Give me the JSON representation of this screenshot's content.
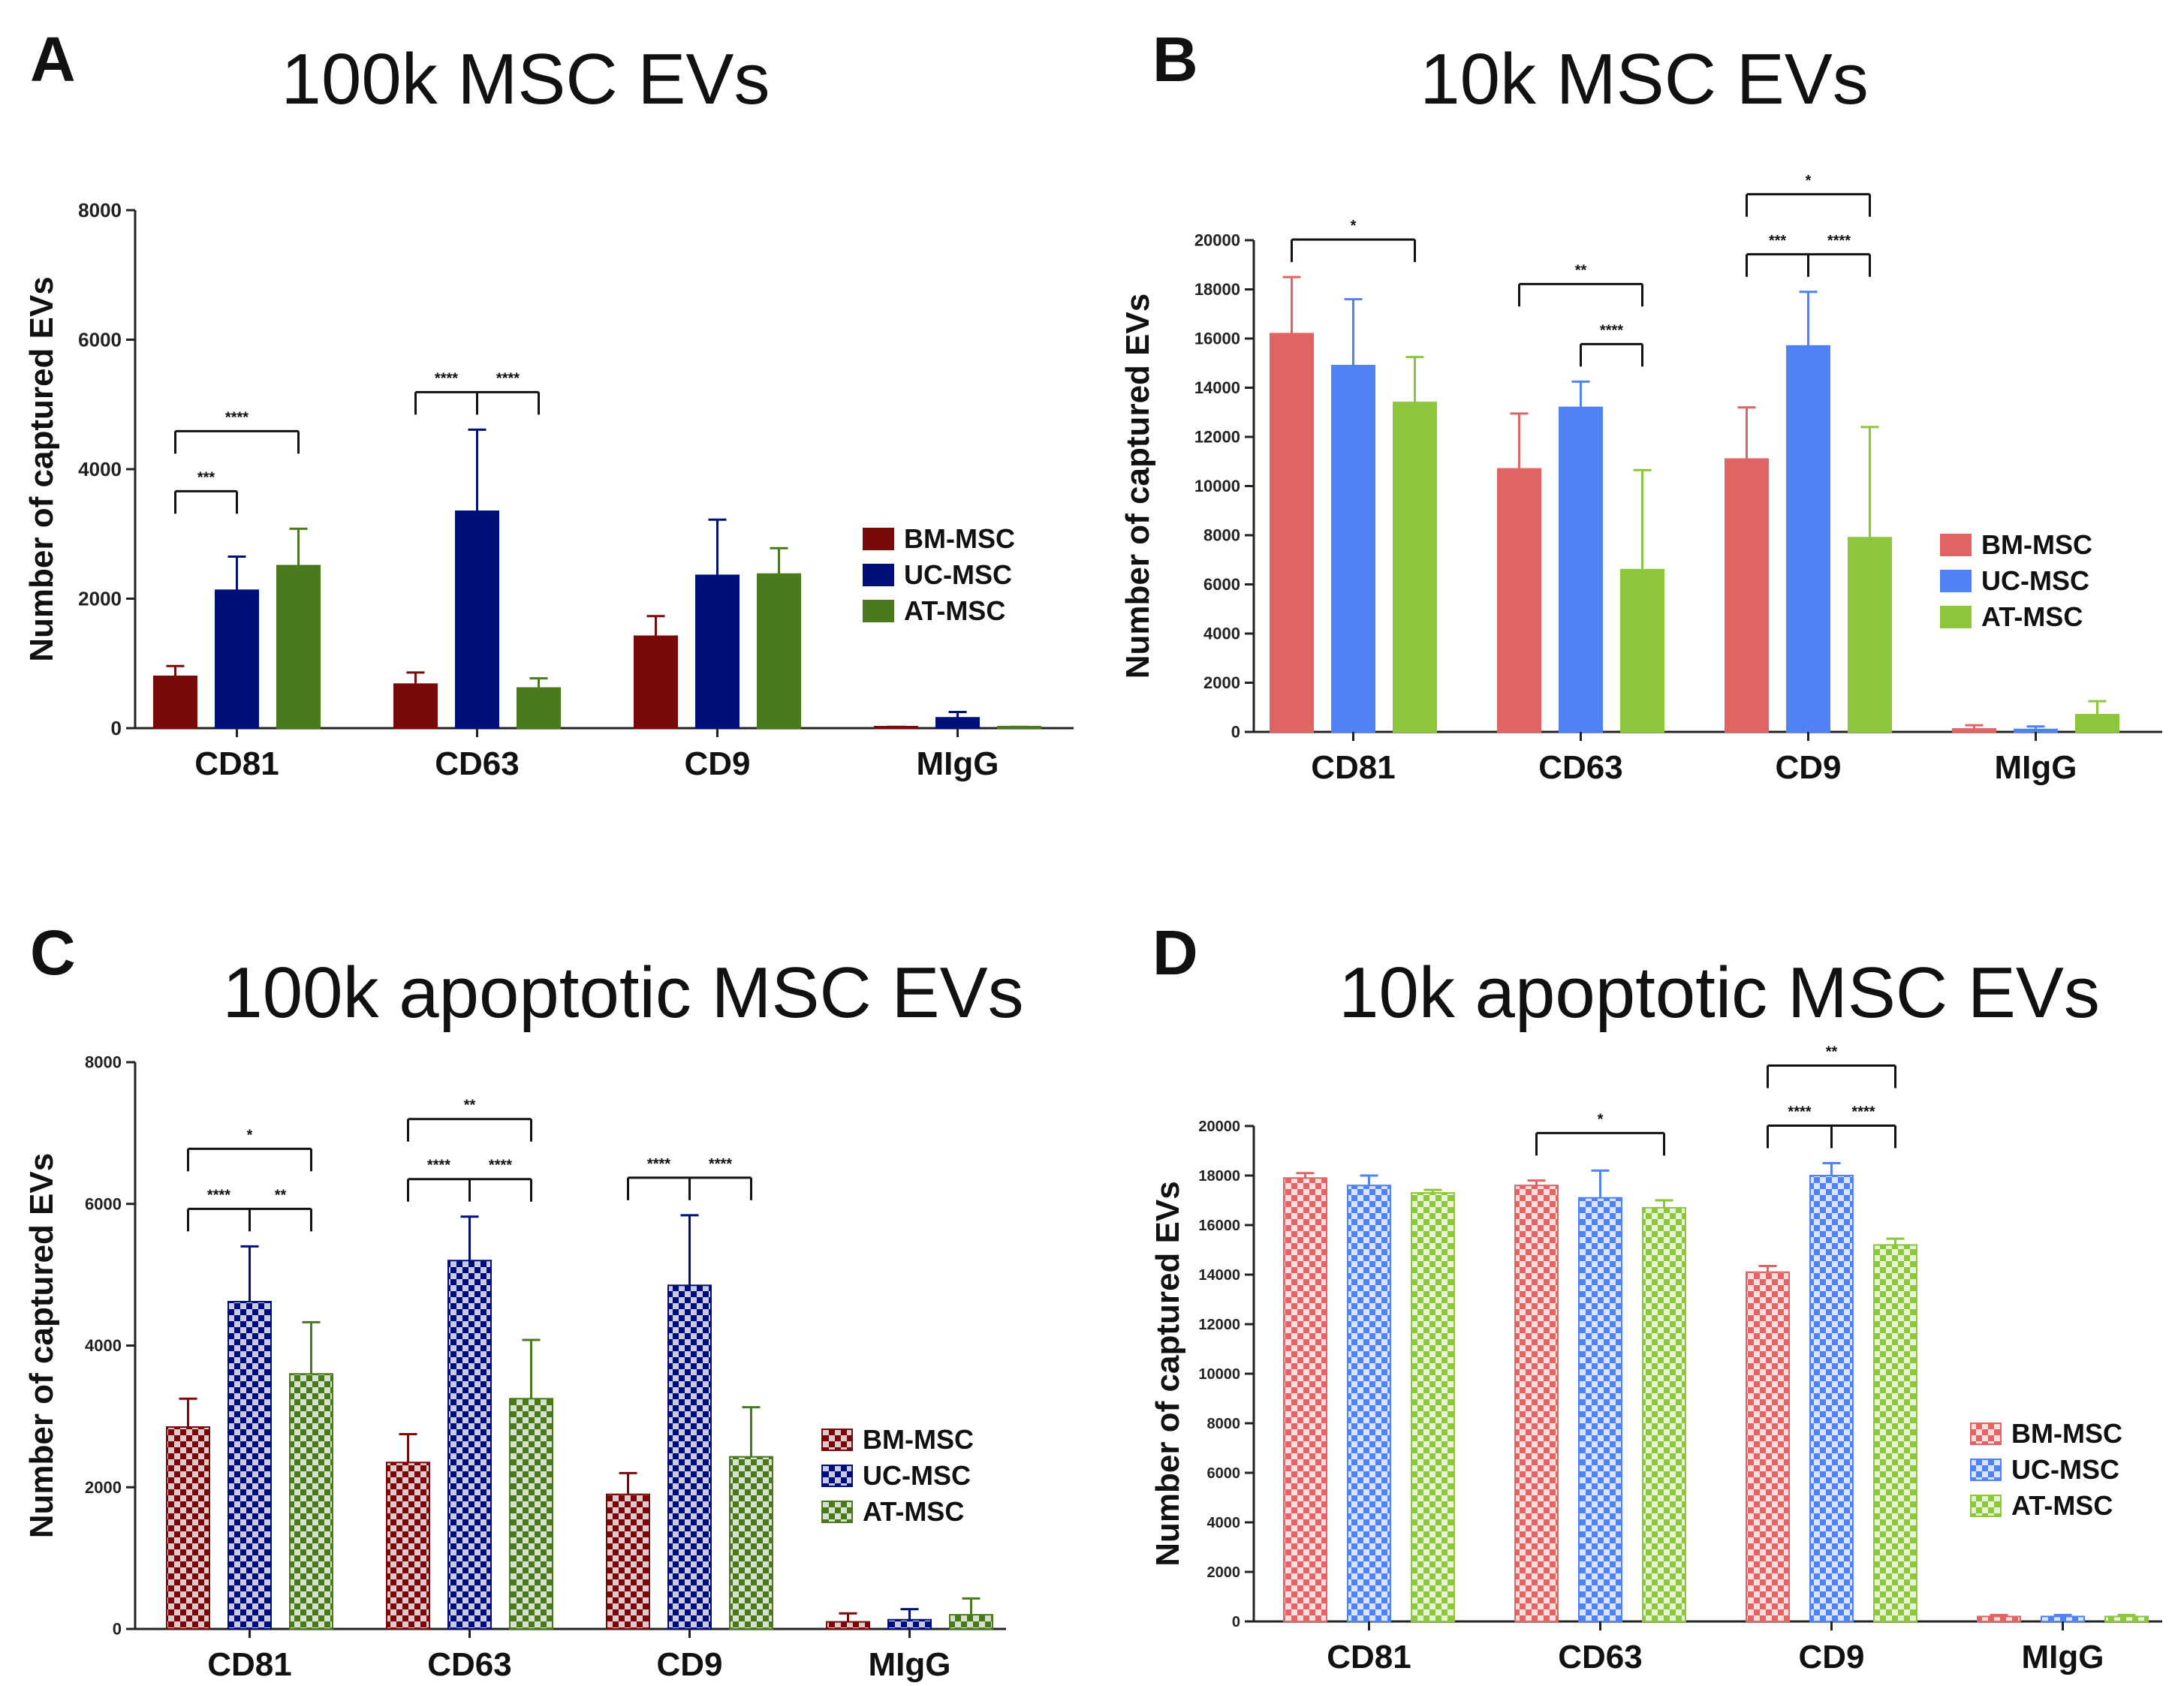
{
  "figure": {
    "legend_labels": [
      "BM-MSC",
      "UC-MSC",
      "AT-MSC"
    ]
  },
  "chart_data": [
    {
      "panel": "A",
      "type": "bar",
      "title": "100k MSC EVs",
      "ylabel": "Number of captured EVs",
      "xlabel": "",
      "ylim": [
        0,
        8000
      ],
      "yticks": [
        0,
        2000,
        4000,
        6000,
        8000
      ],
      "categories": [
        "CD81",
        "CD63",
        "CD9",
        "MIgG"
      ],
      "pattern": "solid",
      "colors": [
        "#7a0a0a",
        "#000f7a",
        "#4a7a1c"
      ],
      "series": [
        {
          "name": "BM-MSC",
          "values": [
            800,
            680,
            1420,
            10
          ],
          "errors": [
            160,
            180,
            310,
            10
          ]
        },
        {
          "name": "UC-MSC",
          "values": [
            2130,
            3350,
            2360,
            160
          ],
          "errors": [
            520,
            1260,
            860,
            90
          ]
        },
        {
          "name": "AT-MSC",
          "values": [
            2510,
            620,
            2380,
            10
          ],
          "errors": [
            570,
            150,
            400,
            10
          ]
        }
      ],
      "significance": [
        {
          "cat": 0,
          "bars": [
            0,
            2
          ],
          "level": 1,
          "label": "****"
        },
        {
          "cat": 0,
          "bars": [
            0,
            1
          ],
          "level": 0,
          "label": "***"
        },
        {
          "cat": 1,
          "bars": [
            0,
            1,
            2
          ],
          "level": 0,
          "label": [
            "****",
            "****"
          ]
        }
      ],
      "legend": "right"
    },
    {
      "panel": "B",
      "type": "bar",
      "title": "10k MSC EVs",
      "ylabel": "Number of captured EVs",
      "xlabel": "",
      "ylim": [
        0,
        20000
      ],
      "yticks": [
        0,
        2000,
        4000,
        6000,
        8000,
        10000,
        12000,
        14000,
        16000,
        18000,
        20000
      ],
      "categories": [
        "CD81",
        "CD63",
        "CD9",
        "MIgG"
      ],
      "pattern": "solid",
      "colors": [
        "#e06464",
        "#4f82f2",
        "#8cc63a"
      ],
      "series": [
        {
          "name": "BM-MSC",
          "values": [
            16200,
            10700,
            11100,
            120
          ],
          "errors": [
            2300,
            2250,
            2100,
            150
          ]
        },
        {
          "name": "UC-MSC",
          "values": [
            14900,
            13200,
            15700,
            100
          ],
          "errors": [
            2700,
            1050,
            2200,
            120
          ]
        },
        {
          "name": "AT-MSC",
          "values": [
            13400,
            6600,
            7900,
            700
          ],
          "errors": [
            1850,
            4050,
            4500,
            550
          ]
        }
      ],
      "significance": [
        {
          "cat": 0,
          "bars": [
            0,
            2
          ],
          "level": 0,
          "label": "*"
        },
        {
          "cat": 1,
          "bars": [
            0,
            2
          ],
          "level": 1,
          "label": "**"
        },
        {
          "cat": 1,
          "bars": [
            1,
            2
          ],
          "level": 0,
          "label": "****"
        },
        {
          "cat": 2,
          "bars": [
            0,
            2
          ],
          "level": 1,
          "label": "*"
        },
        {
          "cat": 2,
          "bars": [
            0,
            1,
            2
          ],
          "level": 0,
          "label": [
            "***",
            "****"
          ]
        }
      ],
      "legend": "right"
    },
    {
      "panel": "C",
      "type": "bar",
      "title": "100k apoptotic MSC EVs",
      "ylabel": "Number of captured EVs",
      "xlabel": "",
      "ylim": [
        0,
        8000
      ],
      "yticks": [
        0,
        2000,
        4000,
        6000,
        8000
      ],
      "categories": [
        "CD81",
        "CD63",
        "CD9",
        "MIgG"
      ],
      "pattern": "checkered",
      "colors": [
        "#7a0a0a",
        "#000f7a",
        "#4a7a1c"
      ],
      "series": [
        {
          "name": "BM-MSC",
          "values": [
            2850,
            2350,
            1900,
            100
          ],
          "errors": [
            400,
            400,
            300,
            120
          ]
        },
        {
          "name": "UC-MSC",
          "values": [
            4620,
            5200,
            4850,
            130
          ],
          "errors": [
            780,
            620,
            990,
            150
          ]
        },
        {
          "name": "AT-MSC",
          "values": [
            3600,
            3250,
            2430,
            200
          ],
          "errors": [
            730,
            830,
            700,
            230
          ]
        }
      ],
      "significance": [
        {
          "cat": 0,
          "bars": [
            0,
            2
          ],
          "level": 1,
          "label": "*"
        },
        {
          "cat": 0,
          "bars": [
            0,
            1,
            2
          ],
          "level": 0,
          "label": [
            "****",
            "**"
          ]
        },
        {
          "cat": 1,
          "bars": [
            0,
            2
          ],
          "level": 1,
          "label": "**"
        },
        {
          "cat": 1,
          "bars": [
            0,
            1,
            2
          ],
          "level": 0,
          "label": [
            "****",
            "****"
          ]
        },
        {
          "cat": 2,
          "bars": [
            0,
            1,
            2
          ],
          "level": 0,
          "label": [
            "****",
            "****"
          ]
        }
      ],
      "legend": "right"
    },
    {
      "panel": "D",
      "type": "bar",
      "title": "10k apoptotic MSC EVs",
      "ylabel": "Number of captured EVs",
      "xlabel": "",
      "ylim": [
        0,
        20000
      ],
      "yticks": [
        0,
        2000,
        4000,
        6000,
        8000,
        10000,
        12000,
        14000,
        16000,
        18000,
        20000
      ],
      "categories": [
        "CD81",
        "CD63",
        "CD9",
        "MIgG"
      ],
      "pattern": "checkered",
      "colors": [
        "#e06464",
        "#4f82f2",
        "#8cc63a"
      ],
      "series": [
        {
          "name": "BM-MSC",
          "values": [
            17900,
            17600,
            14100,
            200
          ],
          "errors": [
            200,
            200,
            250,
            60
          ]
        },
        {
          "name": "UC-MSC",
          "values": [
            17600,
            17100,
            18000,
            200
          ],
          "errors": [
            400,
            1100,
            500,
            60
          ]
        },
        {
          "name": "AT-MSC",
          "values": [
            17300,
            16700,
            15200,
            200
          ],
          "errors": [
            120,
            300,
            250,
            60
          ]
        }
      ],
      "significance": [
        {
          "cat": 1,
          "bars": [
            0,
            2
          ],
          "level": 0,
          "label": "*"
        },
        {
          "cat": 2,
          "bars": [
            0,
            2
          ],
          "level": 1,
          "label": "**"
        },
        {
          "cat": 2,
          "bars": [
            0,
            1,
            2
          ],
          "level": 0,
          "label": [
            "****",
            "****"
          ]
        }
      ],
      "legend": "right"
    }
  ]
}
